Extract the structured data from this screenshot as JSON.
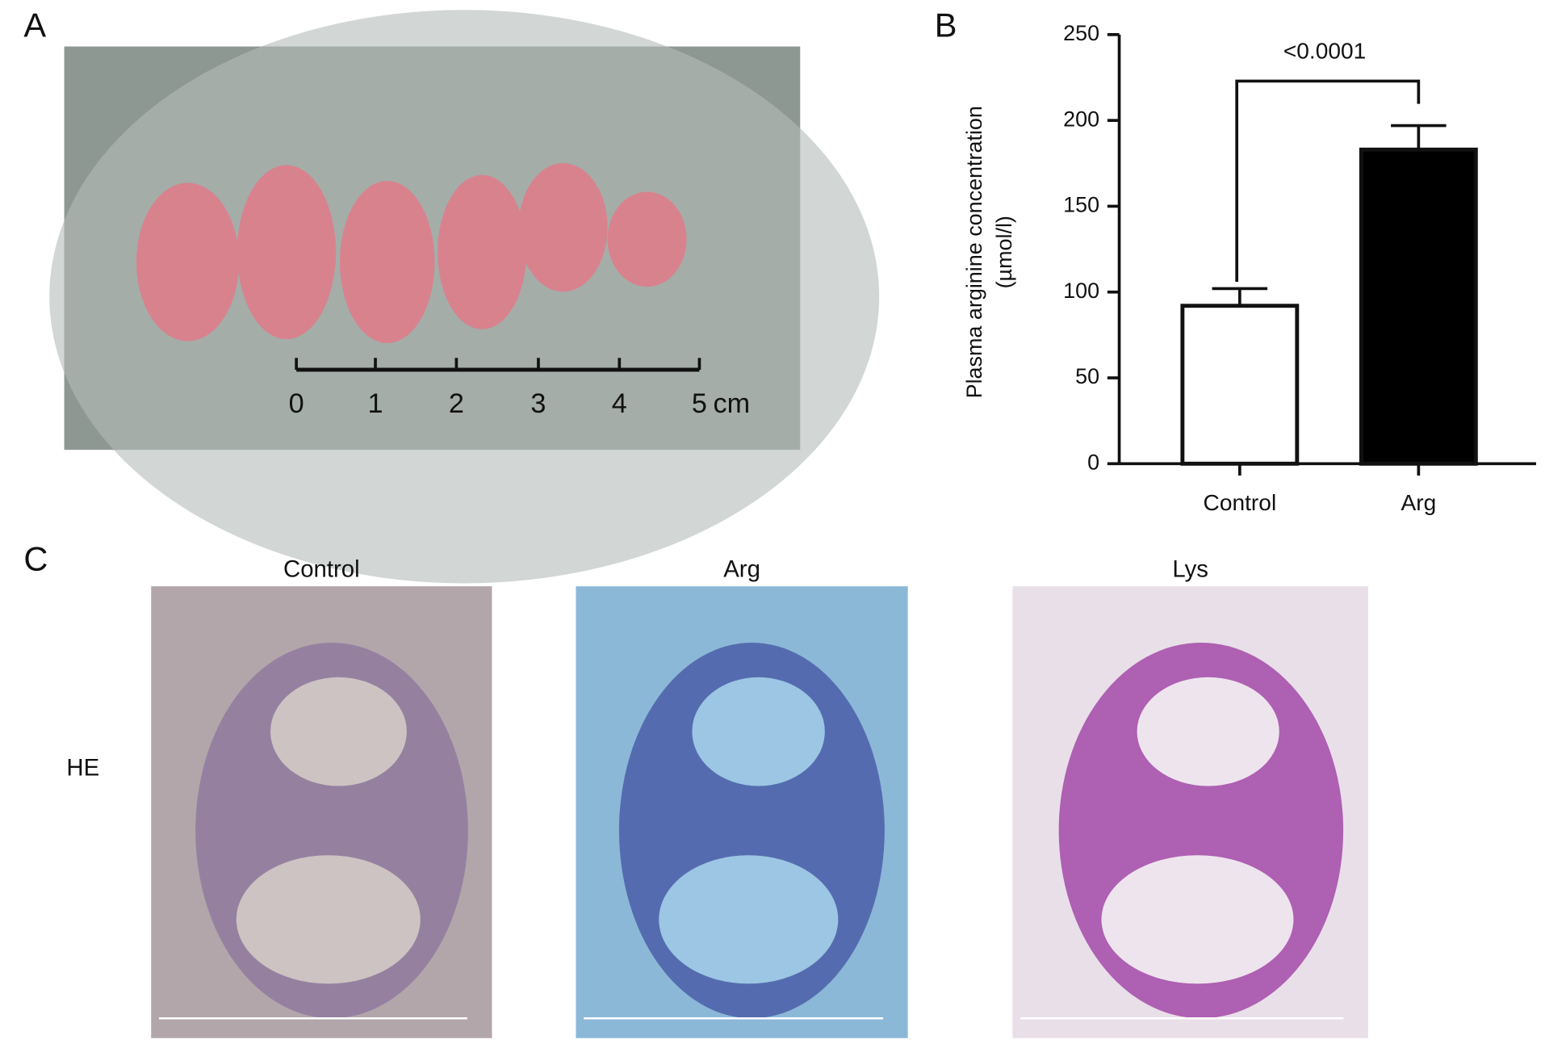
{
  "panel_labels": [
    "A",
    "B",
    "C"
  ],
  "photo": {
    "scale_labels": [
      "0",
      "1",
      "2",
      "3",
      "4",
      "5"
    ],
    "unit": "cm"
  },
  "chart_data": {
    "type": "bar",
    "ylabel": [
      "Plasma arginine concentration",
      "(µmol/l)"
    ],
    "categories": [
      "Control",
      "Arg"
    ],
    "values": [
      92,
      183
    ],
    "errors": [
      10,
      14
    ],
    "colors": [
      "#ffffff",
      "#000000"
    ],
    "ylim": [
      0,
      250
    ],
    "yticks": [
      0,
      50,
      100,
      150,
      200,
      250
    ],
    "annotation": "<0.0001"
  },
  "histology": {
    "row_label": "HE",
    "columns": [
      "Control",
      "Arg",
      "Lys"
    ]
  }
}
